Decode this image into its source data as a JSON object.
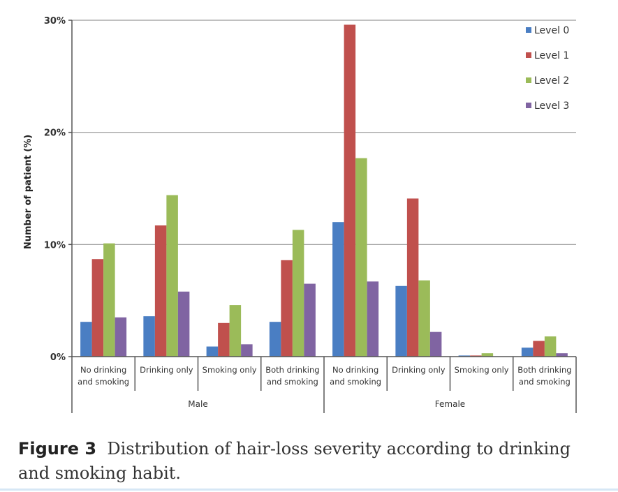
{
  "chart_data": {
    "type": "bar",
    "title": "",
    "xlabel": "",
    "ylabel": "Number of patient (%)",
    "ylim": [
      0,
      30
    ],
    "yticks": [
      0,
      10,
      20,
      30
    ],
    "ytick_labels": [
      "0%",
      "10%",
      "20%",
      "30%"
    ],
    "grid": true,
    "legend_position": "top-right",
    "categories": [
      {
        "label": [
          "No drinking",
          "and smoking"
        ],
        "group": "Male"
      },
      {
        "label": [
          "Drinking only"
        ],
        "group": "Male"
      },
      {
        "label": [
          "Smoking only"
        ],
        "group": "Male"
      },
      {
        "label": [
          "Both drinking",
          "and smoking"
        ],
        "group": "Male"
      },
      {
        "label": [
          "No drinking",
          "and smoking"
        ],
        "group": "Female"
      },
      {
        "label": [
          "Drinking only"
        ],
        "group": "Female"
      },
      {
        "label": [
          "Smoking only"
        ],
        "group": "Female"
      },
      {
        "label": [
          "Both drinking",
          "and smoking"
        ],
        "group": "Female"
      }
    ],
    "groups": [
      "Male",
      "Female"
    ],
    "series": [
      {
        "name": "Level 0",
        "color": "#4a7ec3",
        "values": [
          3.1,
          3.6,
          0.9,
          3.1,
          12.0,
          6.3,
          0.1,
          0.8
        ]
      },
      {
        "name": "Level 1",
        "color": "#c0504d",
        "values": [
          8.7,
          11.7,
          3.0,
          8.6,
          29.6,
          14.1,
          0.1,
          1.4
        ]
      },
      {
        "name": "Level 2",
        "color": "#9bbb59",
        "values": [
          10.1,
          14.4,
          4.6,
          11.3,
          17.7,
          6.8,
          0.3,
          1.8
        ]
      },
      {
        "name": "Level 3",
        "color": "#8064a2",
        "values": [
          3.5,
          5.8,
          1.1,
          6.5,
          6.7,
          2.2,
          0.0,
          0.3
        ]
      }
    ]
  },
  "caption": {
    "label": "Figure 3",
    "text": "Distribution of hair-loss severity according to drinking and smoking habit."
  },
  "colors": {
    "grid": "#9a9a9a",
    "axis": "#555555",
    "caption_rule": "#d6e7f5"
  }
}
